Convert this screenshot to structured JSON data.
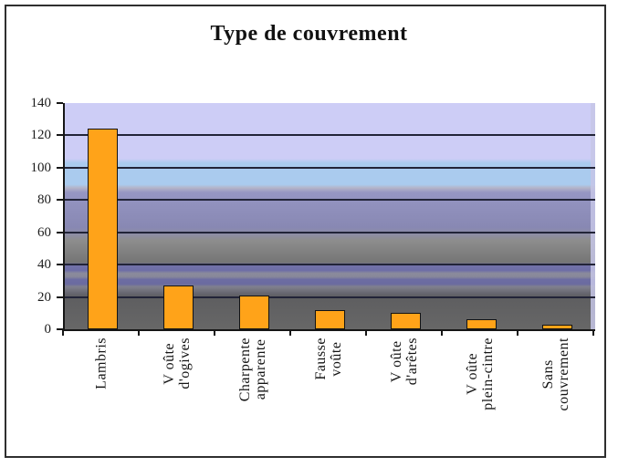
{
  "chart_data": {
    "type": "bar",
    "title": "Type de couvrement",
    "categories": [
      [
        "Lambris"
      ],
      [
        "V oûte",
        "d'ogives"
      ],
      [
        "Charpente",
        "apparente"
      ],
      [
        "Fausse",
        "voûte"
      ],
      [
        "V oûte",
        "d'arêtes"
      ],
      [
        "V oûte",
        "plein-cintre"
      ],
      [
        "Sans",
        "couvrement"
      ]
    ],
    "values": [
      124,
      27,
      21,
      12,
      10,
      6,
      3
    ],
    "xlabel": "",
    "ylabel": "",
    "ylim": [
      0,
      140
    ],
    "yticks": [
      0,
      20,
      40,
      60,
      80,
      100,
      120,
      140
    ],
    "grid": true,
    "legend": "none",
    "style": {
      "bar_color": "#ffa319",
      "bar_border_color": "#131313",
      "axis_color": "#161616",
      "gridline_color": "#222438",
      "frame_border_color": "#2f2f2f",
      "background_color": "#ffffff",
      "plot_gradient_stops": [
        {
          "pct": 0,
          "color": "#cdcdf6"
        },
        {
          "pct": 24.5,
          "color": "#cdcdf6"
        },
        {
          "pct": 26.5,
          "color": "#aacbee"
        },
        {
          "pct": 36,
          "color": "#aacbee"
        },
        {
          "pct": 37.5,
          "color": "#b4b4c8"
        },
        {
          "pct": 39.5,
          "color": "#9696c3"
        },
        {
          "pct": 55,
          "color": "#8888b3"
        },
        {
          "pct": 58.5,
          "color": "#8e8ea1"
        },
        {
          "pct": 60.5,
          "color": "#8e8e8e"
        },
        {
          "pct": 70.5,
          "color": "#757575"
        },
        {
          "pct": 71.5,
          "color": "#7272a9"
        },
        {
          "pct": 74,
          "color": "#6e6ea6"
        },
        {
          "pct": 75.2,
          "color": "#8a8a9c"
        },
        {
          "pct": 76.8,
          "color": "#88889a"
        },
        {
          "pct": 78,
          "color": "#6c6ca2"
        },
        {
          "pct": 80,
          "color": "#6b6ba0"
        },
        {
          "pct": 81.2,
          "color": "#80808e"
        },
        {
          "pct": 84.5,
          "color": "#63636b"
        },
        {
          "pct": 86,
          "color": "#5e5e60"
        },
        {
          "pct": 100,
          "color": "#676767"
        }
      ]
    }
  }
}
